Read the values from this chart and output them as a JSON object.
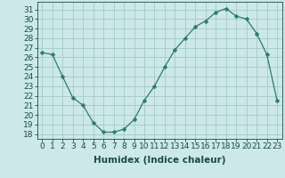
{
  "x": [
    0,
    1,
    2,
    3,
    4,
    5,
    6,
    7,
    8,
    9,
    10,
    11,
    12,
    13,
    14,
    15,
    16,
    17,
    18,
    19,
    20,
    21,
    22,
    23
  ],
  "y": [
    26.5,
    26.3,
    24.0,
    21.8,
    21.0,
    19.2,
    18.2,
    18.2,
    18.5,
    19.5,
    21.5,
    23.0,
    25.0,
    26.8,
    28.0,
    29.2,
    29.8,
    30.7,
    31.1,
    30.3,
    30.0,
    28.5,
    26.3,
    21.5
  ],
  "line_color": "#2d7b6e",
  "marker": "D",
  "marker_size": 2.5,
  "bg_color": "#cce8e8",
  "grid_color": "#aacece",
  "xlabel": "Humidex (Indice chaleur)",
  "ylabel_ticks": [
    18,
    19,
    20,
    21,
    22,
    23,
    24,
    25,
    26,
    27,
    28,
    29,
    30,
    31
  ],
  "ylim": [
    17.5,
    31.8
  ],
  "xlim": [
    -0.5,
    23.5
  ],
  "xtick_labels": [
    "0",
    "1",
    "2",
    "3",
    "4",
    "5",
    "6",
    "7",
    "8",
    "9",
    "10",
    "11",
    "12",
    "13",
    "14",
    "15",
    "16",
    "17",
    "18",
    "19",
    "20",
    "21",
    "22",
    "23"
  ],
  "font_color": "#1a4a4a",
  "label_fontsize": 7.5,
  "tick_fontsize": 6.5
}
